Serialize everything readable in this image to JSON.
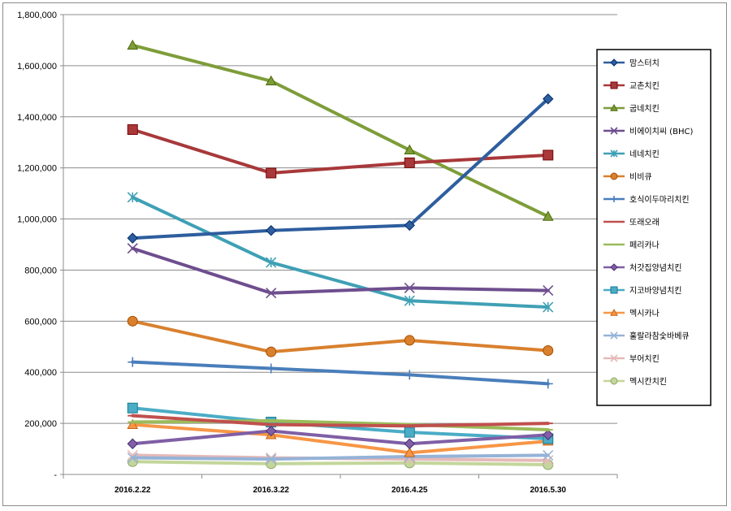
{
  "chart_data": {
    "type": "line",
    "title": "",
    "xlabel": "",
    "ylabel": "",
    "categories": [
      "2016.2.22",
      "2016.3.22",
      "2016.4.25",
      "2016.5.30"
    ],
    "ylim": [
      0,
      1800000
    ],
    "yticks": [
      0,
      200000,
      400000,
      600000,
      800000,
      1000000,
      1200000,
      1400000,
      1600000,
      1800000
    ],
    "ytick_labels": [
      "-",
      "200,000",
      "400,000",
      "600,000",
      "800,000",
      "1,000,000",
      "1,200,000",
      "1,400,000",
      "1,600,000",
      "1,800,000"
    ],
    "grid": "horizontal",
    "legend_position": "right",
    "series": [
      {
        "name": "맘스터치",
        "color": "#2E5E9E",
        "marker": "diamond",
        "values": [
          925000,
          955000,
          975000,
          1470000
        ]
      },
      {
        "name": "교촌치킨",
        "color": "#A8383A",
        "marker": "square",
        "values": [
          1350000,
          1180000,
          1220000,
          1250000
        ]
      },
      {
        "name": "굽네치킨",
        "color": "#7E9D3A",
        "marker": "triangle",
        "values": [
          1680000,
          1540000,
          1270000,
          1010000
        ]
      },
      {
        "name": "비에이치씨 (BHC)",
        "color": "#6E4E8E",
        "marker": "x",
        "values": [
          885000,
          710000,
          730000,
          720000
        ]
      },
      {
        "name": "네네치킨",
        "color": "#3FA0B5",
        "marker": "star",
        "values": [
          1085000,
          830000,
          680000,
          655000
        ]
      },
      {
        "name": "비비큐",
        "color": "#D9802E",
        "marker": "circle",
        "values": [
          600000,
          480000,
          525000,
          485000
        ]
      },
      {
        "name": "호식이두마리치킨",
        "color": "#4A7EBB",
        "marker": "plus",
        "values": [
          440000,
          415000,
          390000,
          355000
        ]
      },
      {
        "name": "또래오래",
        "color": "#C0504D",
        "marker": "dash",
        "values": [
          230000,
          195000,
          190000,
          200000
        ]
      },
      {
        "name": "페리카나",
        "color": "#9BBB59",
        "marker": "dash",
        "values": [
          205000,
          210000,
          195000,
          175000
        ]
      },
      {
        "name": "처갓집양념치킨",
        "color": "#7F5FA5",
        "marker": "diamond",
        "values": [
          120000,
          170000,
          120000,
          155000
        ]
      },
      {
        "name": "지코바양념치킨",
        "color": "#4BACC6",
        "marker": "square",
        "values": [
          260000,
          205000,
          165000,
          140000
        ]
      },
      {
        "name": "멕시카나",
        "color": "#F79646",
        "marker": "triangle",
        "values": [
          195000,
          155000,
          85000,
          130000
        ]
      },
      {
        "name": "훌랄라참숯바베큐",
        "color": "#95B3D7",
        "marker": "x",
        "values": [
          65000,
          60000,
          70000,
          75000
        ]
      },
      {
        "name": "부어치킨",
        "color": "#E6B9B8",
        "marker": "x",
        "values": [
          75000,
          65000,
          60000,
          55000
        ]
      },
      {
        "name": "멕시칸치킨",
        "color": "#C3D69B",
        "marker": "circle",
        "values": [
          50000,
          42000,
          45000,
          38000
        ]
      }
    ]
  }
}
